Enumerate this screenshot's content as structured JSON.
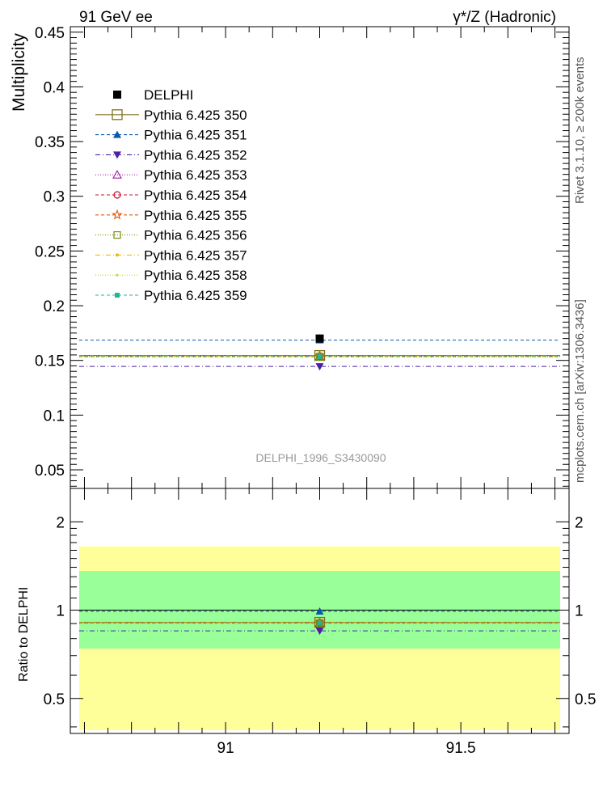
{
  "header": {
    "left": "91 GeV ee",
    "right": "γ*/Z (Hadronic)"
  },
  "side": {
    "rivet": "Rivet 3.1.10, ≥ 200k events",
    "mcplots": "mcplots.cern.ch [arXiv:1306.3436]"
  },
  "analysis_label": "DELPHI_1996_S3430090",
  "chart_data": [
    {
      "type": "line",
      "panel": "main",
      "ylabel": "Multiplicity",
      "xlim": [
        90.67,
        91.73
      ],
      "ylim": [
        0.033,
        0.455
      ],
      "yticks": [
        {
          "v": 0.05,
          "label": "0.05"
        },
        {
          "v": 0.1,
          "label": "0.1"
        },
        {
          "v": 0.15,
          "label": "0.15"
        },
        {
          "v": 0.2,
          "label": "0.2"
        },
        {
          "v": 0.25,
          "label": "0.25"
        },
        {
          "v": 0.3,
          "label": "0.3"
        },
        {
          "v": 0.35,
          "label": "0.35"
        },
        {
          "v": 0.4,
          "label": "0.4"
        },
        {
          "v": 0.45,
          "label": "0.45"
        }
      ],
      "x_point": 91.2,
      "data": {
        "name": "DELPHI",
        "y": 0.17,
        "color": "#000000"
      },
      "legend_placement": "top-left",
      "series": [
        {
          "name": "Pythia 6.425 350",
          "y": 0.1545,
          "color": "#807020",
          "marker": "open-square-large",
          "dash": "solid"
        },
        {
          "name": "Pythia 6.425 351",
          "y": 0.1685,
          "color": "#0a56b3",
          "marker": "triangle-up",
          "dash": "4,3"
        },
        {
          "name": "Pythia 6.425 352",
          "y": 0.1445,
          "color": "#4b1fa6",
          "marker": "triangle-down",
          "dash": "6,3,1,3"
        },
        {
          "name": "Pythia 6.425 353",
          "y": 0.1535,
          "color": "#9c1ca6",
          "marker": "open-triangle-up",
          "dash": "1,2"
        },
        {
          "name": "Pythia 6.425 354",
          "y": 0.154,
          "color": "#cc1030",
          "marker": "open-circle",
          "dash": "4,3"
        },
        {
          "name": "Pythia 6.425 355",
          "y": 0.1545,
          "color": "#e05a10",
          "marker": "open-star",
          "dash": "4,3"
        },
        {
          "name": "Pythia 6.425 356",
          "y": 0.1535,
          "color": "#7a8a10",
          "marker": "open-square",
          "dash": "1,2"
        },
        {
          "name": "Pythia 6.425 357",
          "y": 0.154,
          "color": "#f0b800",
          "marker": "dot",
          "dash": "6,3,1,3"
        },
        {
          "name": "Pythia 6.425 358",
          "y": 0.153,
          "color": "#b8d820",
          "marker": "dot-small",
          "dash": "1,2"
        },
        {
          "name": "Pythia 6.425 359",
          "y": 0.1535,
          "color": "#20b890",
          "marker": "filled-square-small",
          "dash": "4,3"
        }
      ]
    },
    {
      "type": "line",
      "panel": "ratio",
      "ylabel": "Ratio to DELPHI",
      "y_scale": "log",
      "xlim": [
        90.67,
        91.73
      ],
      "ylim": [
        0.38,
        2.6
      ],
      "yticks": [
        {
          "v": 0.5,
          "label": "0.5"
        },
        {
          "v": 1,
          "label": "1"
        },
        {
          "v": 2,
          "label": "2"
        }
      ],
      "xticks": [
        {
          "v": 91.0,
          "label": "91"
        },
        {
          "v": 91.5,
          "label": "91.5"
        }
      ],
      "bands": {
        "yellow": {
          "lo": 0.39,
          "hi": 1.65,
          "color": "#ffff99"
        },
        "green": {
          "lo": 0.74,
          "hi": 1.36,
          "color": "#99ff99"
        }
      },
      "ratios": [
        0.909,
        0.991,
        0.85,
        0.903,
        0.906,
        0.909,
        0.903,
        0.906,
        0.9,
        0.903
      ]
    }
  ]
}
